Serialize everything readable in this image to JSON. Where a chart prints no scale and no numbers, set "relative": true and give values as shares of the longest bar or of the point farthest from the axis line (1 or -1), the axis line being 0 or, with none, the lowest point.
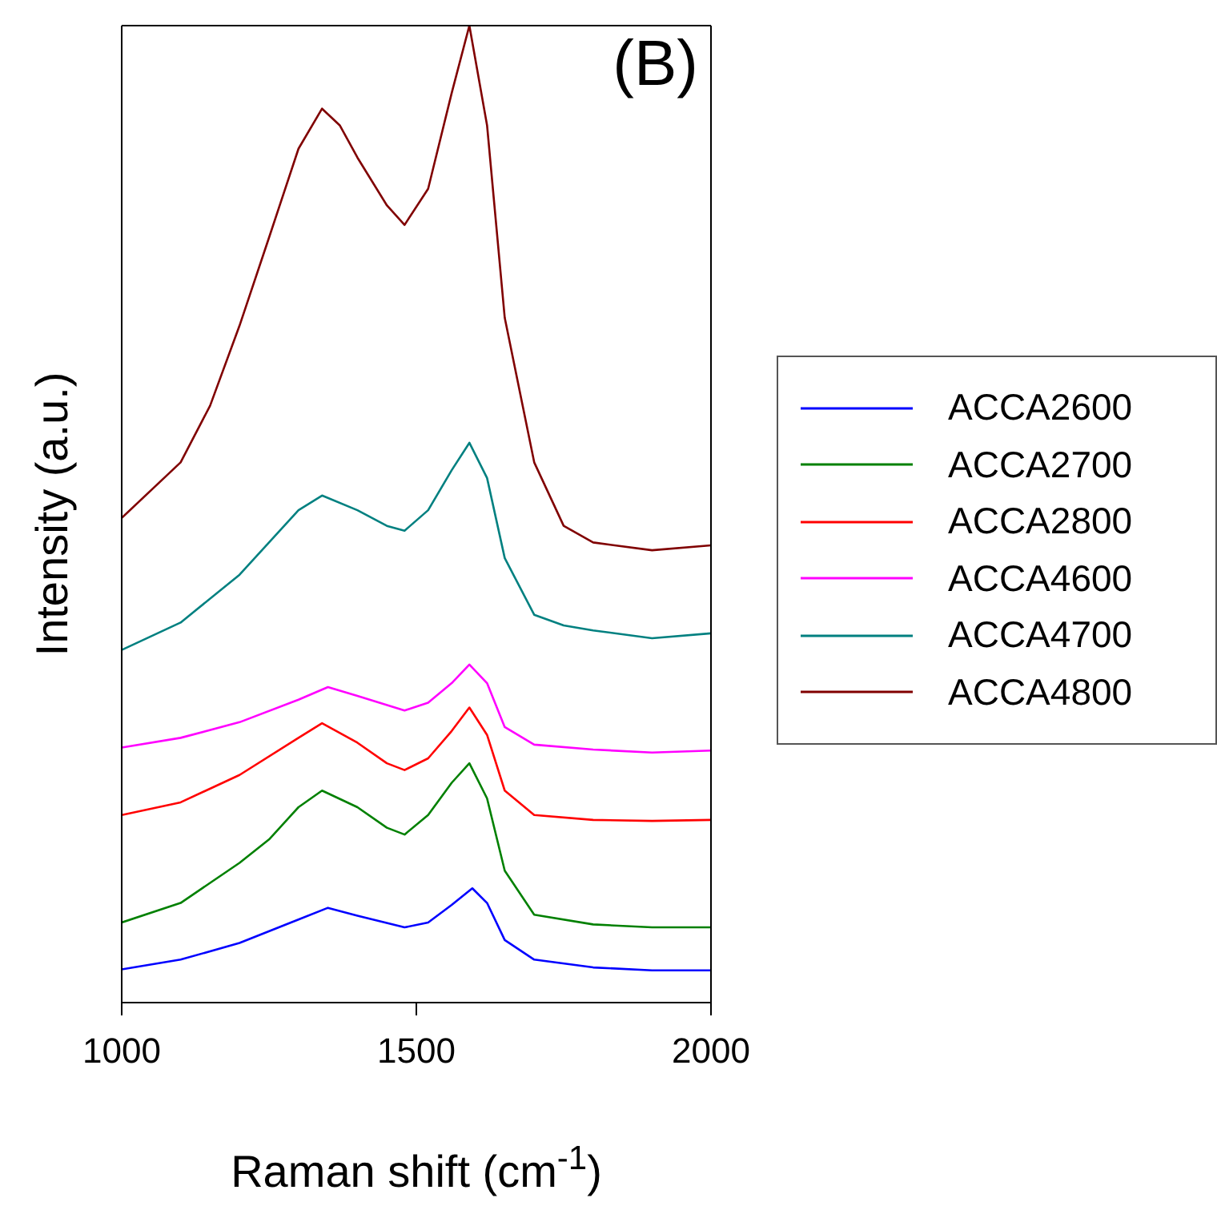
{
  "chart_data": {
    "type": "line",
    "xlabel": "Raman shift (cm$^{-1}$)",
    "ylabel": "Intensity (a.u.)",
    "annotations": [
      "(B)"
    ],
    "relative": true,
    "xlim": [
      1000,
      2000
    ],
    "xticks": [
      1000,
      1500,
      2000
    ],
    "tick_labels": "x",
    "legend": "right",
    "marker": "none",
    "line_style": "solid",
    "series": [
      {
        "name": "ACCA2600",
        "color": "#0000ff",
        "x": [
          1000,
          1100,
          1200,
          1300,
          1350,
          1400,
          1480,
          1520,
          1560,
          1595,
          1620,
          1650,
          1700,
          1800,
          1900,
          2000
        ],
        "values": [
          0.034,
          0.044,
          0.061,
          0.085,
          0.097,
          0.089,
          0.077,
          0.082,
          0.1,
          0.117,
          0.102,
          0.064,
          0.044,
          0.036,
          0.033,
          0.033
        ]
      },
      {
        "name": "ACCA2700",
        "color": "#008000",
        "x": [
          1000,
          1100,
          1200,
          1250,
          1300,
          1340,
          1400,
          1450,
          1480,
          1520,
          1560,
          1590,
          1620,
          1650,
          1700,
          1800,
          1900,
          2000
        ],
        "values": [
          0.082,
          0.102,
          0.143,
          0.167,
          0.2,
          0.217,
          0.2,
          0.179,
          0.172,
          0.192,
          0.225,
          0.245,
          0.209,
          0.135,
          0.09,
          0.08,
          0.077,
          0.077
        ]
      },
      {
        "name": "ACCA2800",
        "color": "#ff0000",
        "x": [
          1000,
          1100,
          1200,
          1300,
          1340,
          1400,
          1450,
          1480,
          1520,
          1560,
          1590,
          1620,
          1650,
          1700,
          1800,
          1900,
          2000
        ],
        "values": [
          0.192,
          0.205,
          0.233,
          0.271,
          0.286,
          0.266,
          0.245,
          0.238,
          0.25,
          0.278,
          0.302,
          0.274,
          0.217,
          0.192,
          0.187,
          0.186,
          0.187
        ]
      },
      {
        "name": "ACCA4600",
        "color": "#ff00ff",
        "x": [
          1000,
          1100,
          1200,
          1300,
          1350,
          1400,
          1480,
          1520,
          1560,
          1590,
          1620,
          1650,
          1700,
          1800,
          1900,
          2000
        ],
        "values": [
          0.261,
          0.271,
          0.287,
          0.31,
          0.323,
          0.314,
          0.299,
          0.307,
          0.327,
          0.346,
          0.327,
          0.282,
          0.264,
          0.259,
          0.256,
          0.258
        ]
      },
      {
        "name": "ACCA4700",
        "color": "#008080",
        "x": [
          1000,
          1100,
          1200,
          1250,
          1300,
          1340,
          1400,
          1450,
          1480,
          1520,
          1560,
          1590,
          1620,
          1650,
          1700,
          1750,
          1800,
          1900,
          2000
        ],
        "values": [
          0.361,
          0.389,
          0.438,
          0.471,
          0.504,
          0.519,
          0.504,
          0.488,
          0.483,
          0.504,
          0.545,
          0.573,
          0.537,
          0.455,
          0.397,
          0.386,
          0.381,
          0.373,
          0.378
        ]
      },
      {
        "name": "ACCA4800",
        "color": "#800000",
        "x": [
          1000,
          1100,
          1150,
          1200,
          1250,
          1300,
          1340,
          1370,
          1400,
          1450,
          1480,
          1520,
          1560,
          1590,
          1620,
          1650,
          1700,
          1750,
          1800,
          1900,
          2000
        ],
        "values": [
          0.496,
          0.553,
          0.611,
          0.693,
          0.783,
          0.874,
          0.915,
          0.898,
          0.865,
          0.816,
          0.796,
          0.833,
          0.931,
          1,
          0.898,
          0.701,
          0.553,
          0.488,
          0.471,
          0.463,
          0.468
        ]
      }
    ]
  }
}
